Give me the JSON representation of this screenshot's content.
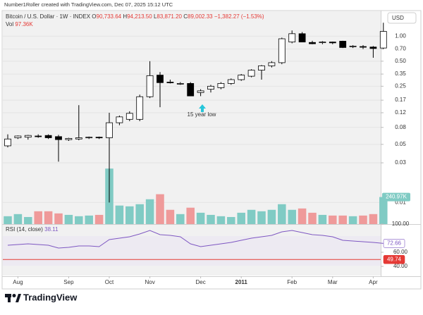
{
  "header": "Number1Roller created with TradingView.com, Dec 07, 2025 15:12 UTC",
  "currency": "USD",
  "brand": "TradingView",
  "chart_data": {
    "type": "candlestick",
    "title": "Bitcoin / U.S. Dollar · 1W · INDEX",
    "ohlc": [
      {
        "label": "O",
        "value": "90,733.64"
      },
      {
        "label": "H",
        "value": "94,213.50"
      },
      {
        "label": "L",
        "value": "83,871.20"
      },
      {
        "label": "C",
        "value": "89,002.33"
      }
    ],
    "change": "−1,382.27 (−1.53%)",
    "annotation": "15 year low",
    "categories": [
      null,
      "Aug",
      null,
      null,
      null,
      null,
      "Sep",
      null,
      null,
      null,
      "Oct",
      null,
      null,
      null,
      "Nov",
      null,
      null,
      null,
      null,
      "Dec",
      null,
      null,
      null,
      "2011",
      null,
      null,
      null,
      null,
      "Feb",
      null,
      null,
      null,
      "Mar",
      null,
      null,
      null,
      "Apr",
      null
    ],
    "open": [
      0.048,
      0.06,
      0.061,
      0.063,
      0.064,
      0.062,
      0.057,
      0.058,
      0.06,
      0.061,
      0.06,
      0.091,
      0.1,
      0.1,
      0.187,
      0.34,
      0.28,
      0.27,
      0.27,
      0.21,
      0.23,
      0.24,
      0.27,
      0.3,
      0.33,
      0.39,
      0.44,
      0.48,
      0.85,
      1.07,
      0.84,
      0.84,
      0.85,
      0.87,
      0.75,
      0.75,
      0.74,
      0.72
    ],
    "high": [
      0.066,
      0.064,
      0.065,
      0.066,
      0.066,
      0.065,
      0.06,
      0.148,
      0.062,
      0.062,
      0.12,
      0.111,
      0.125,
      0.198,
      0.5,
      0.37,
      0.3,
      0.28,
      0.28,
      0.23,
      0.26,
      0.28,
      0.31,
      0.35,
      0.4,
      0.45,
      0.5,
      0.96,
      1.17,
      1.12,
      0.88,
      0.87,
      0.86,
      0.88,
      0.78,
      0.78,
      0.76,
      1.45
    ],
    "low": [
      0.046,
      0.058,
      0.057,
      0.06,
      0.058,
      0.031,
      0.055,
      0.056,
      0.058,
      0.058,
      0.01,
      0.085,
      0.095,
      0.095,
      0.18,
      0.14,
      0.27,
      0.26,
      0.19,
      0.19,
      0.21,
      0.23,
      0.26,
      0.29,
      0.32,
      0.3,
      0.42,
      0.46,
      0.82,
      0.85,
      0.8,
      0.8,
      0.8,
      0.72,
      0.72,
      0.7,
      0.55,
      0.7
    ],
    "close": [
      0.058,
      0.063,
      0.064,
      0.062,
      0.06,
      0.057,
      0.059,
      0.06,
      0.061,
      0.06,
      0.091,
      0.107,
      0.118,
      0.187,
      0.335,
      0.276,
      0.275,
      0.27,
      0.191,
      0.22,
      0.25,
      0.27,
      0.3,
      0.34,
      0.39,
      0.44,
      0.48,
      0.93,
      1.07,
      0.85,
      0.81,
      0.85,
      0.83,
      0.73,
      0.76,
      0.74,
      0.71,
      1.14
    ],
    "up_color": "#ffffff",
    "down_color": "#000000",
    "log_scale": true,
    "ylim": [
      0.0055,
      2.03
    ],
    "yticks": [
      {
        "value": 1,
        "label": "1.00"
      },
      {
        "value": 0.7,
        "label": "0.70"
      },
      {
        "value": 0.5,
        "label": "0.50"
      },
      0.35,
      0.25,
      0.17,
      0.12,
      0.08,
      0.05,
      0.03,
      0.01
    ],
    "volume": {
      "name": "Vol",
      "legend_value": "97.36K",
      "values": [
        70000,
        89000,
        63000,
        114000,
        114000,
        95000,
        82000,
        70000,
        76000,
        82000,
        494000,
        165000,
        158000,
        177000,
        221000,
        266000,
        127000,
        89000,
        146000,
        101000,
        82000,
        70000,
        63000,
        101000,
        127000,
        114000,
        127000,
        177000,
        127000,
        139000,
        101000,
        82000,
        76000,
        76000,
        70000,
        76000,
        89000,
        240970
      ],
      "ylim": [
        0,
        1900000
      ],
      "yticks": [
        {
          "value": 240970,
          "label": "240.97K"
        }
      ],
      "up_color": "#80cbc4",
      "down_color": "#ef9a9a"
    },
    "rsi": {
      "name": "RSI (14, close)",
      "legend_value": "38.11",
      "values": [
        70,
        71,
        72,
        71,
        70,
        66,
        67,
        69,
        69,
        68,
        78,
        80,
        82,
        86,
        91,
        85,
        84,
        82,
        72,
        68,
        70,
        72,
        74,
        77,
        80,
        82,
        84,
        89,
        91,
        88,
        85,
        84,
        82,
        77,
        76,
        75,
        74,
        72.66
      ],
      "color": "#7e57c2",
      "ylim": [
        34,
        100
      ],
      "yticks": [
        {
          "value": 100,
          "label": "100.00"
        },
        {
          "value": 60,
          "label": "60.00"
        },
        {
          "value": 40,
          "label": "40.00"
        }
      ],
      "markers": [
        {
          "value": 72.66,
          "color": "#7e57c2"
        },
        {
          "value": 49.74,
          "color": "#e53935",
          "line": true
        }
      ]
    }
  }
}
